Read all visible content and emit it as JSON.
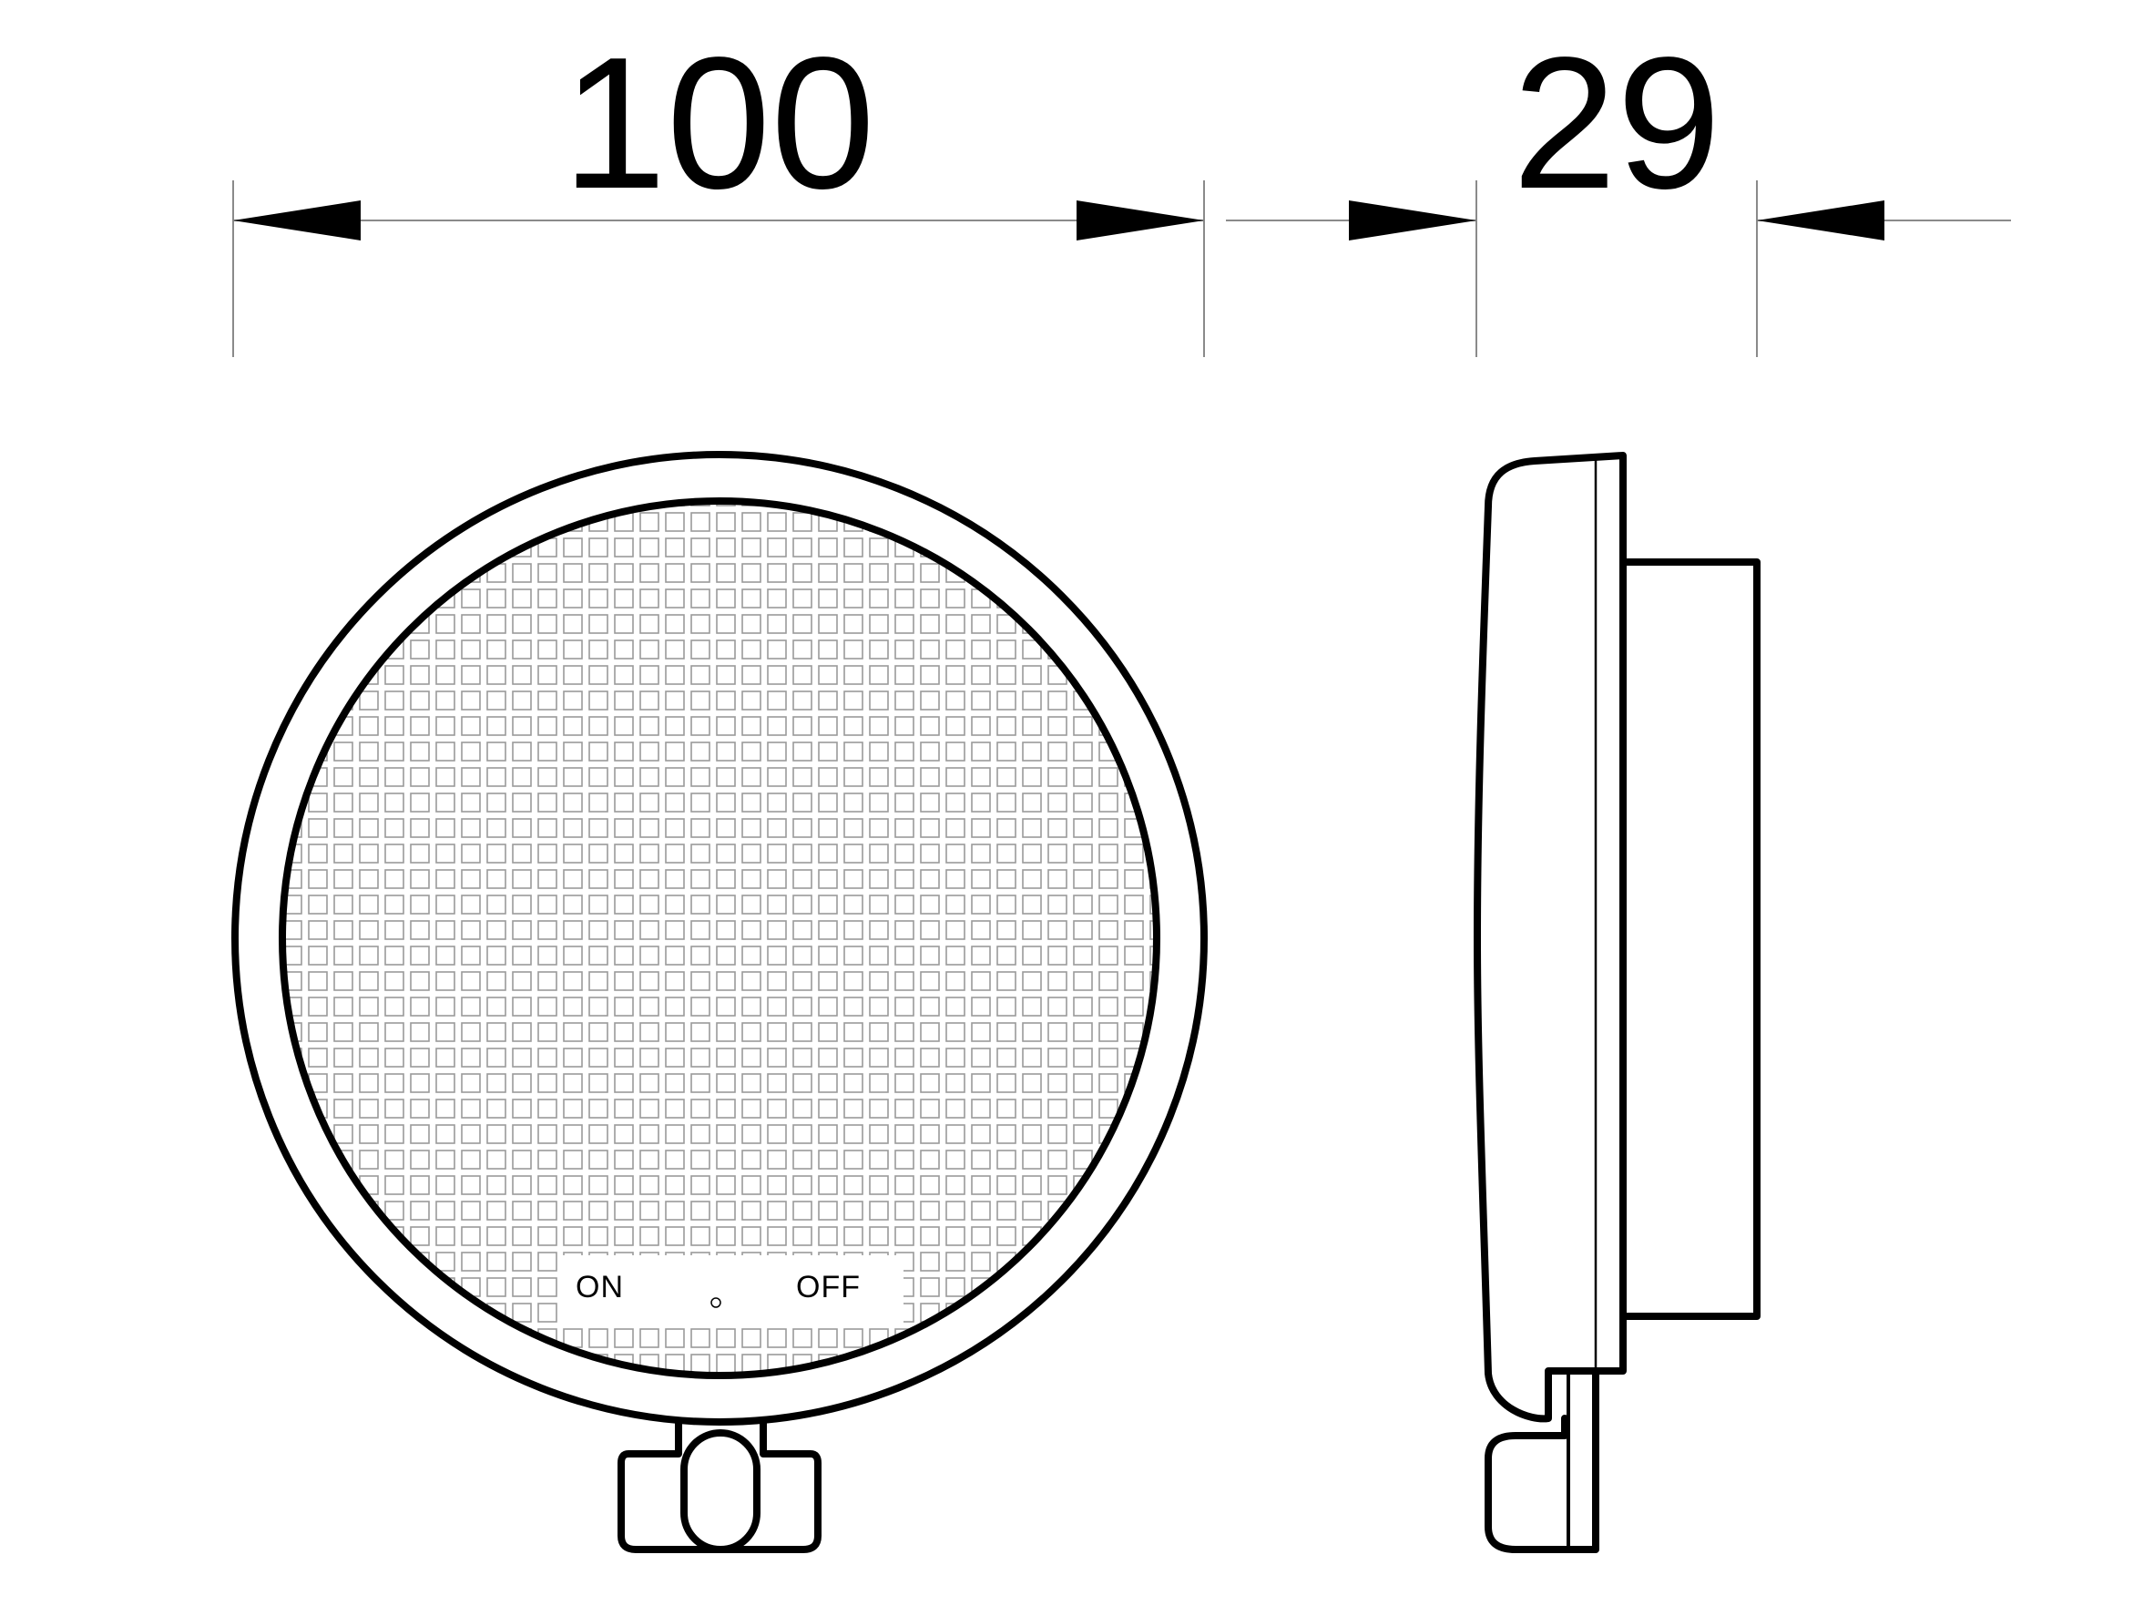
{
  "dimensions": {
    "width": "100",
    "depth": "29"
  },
  "front_view": {
    "switch_on_label": "ON",
    "switch_off_label": "OFF"
  },
  "colors": {
    "line": "#000000",
    "dimension_line": "#8a8a8a",
    "grid": "#9a9a9a",
    "background": "#ffffff"
  }
}
